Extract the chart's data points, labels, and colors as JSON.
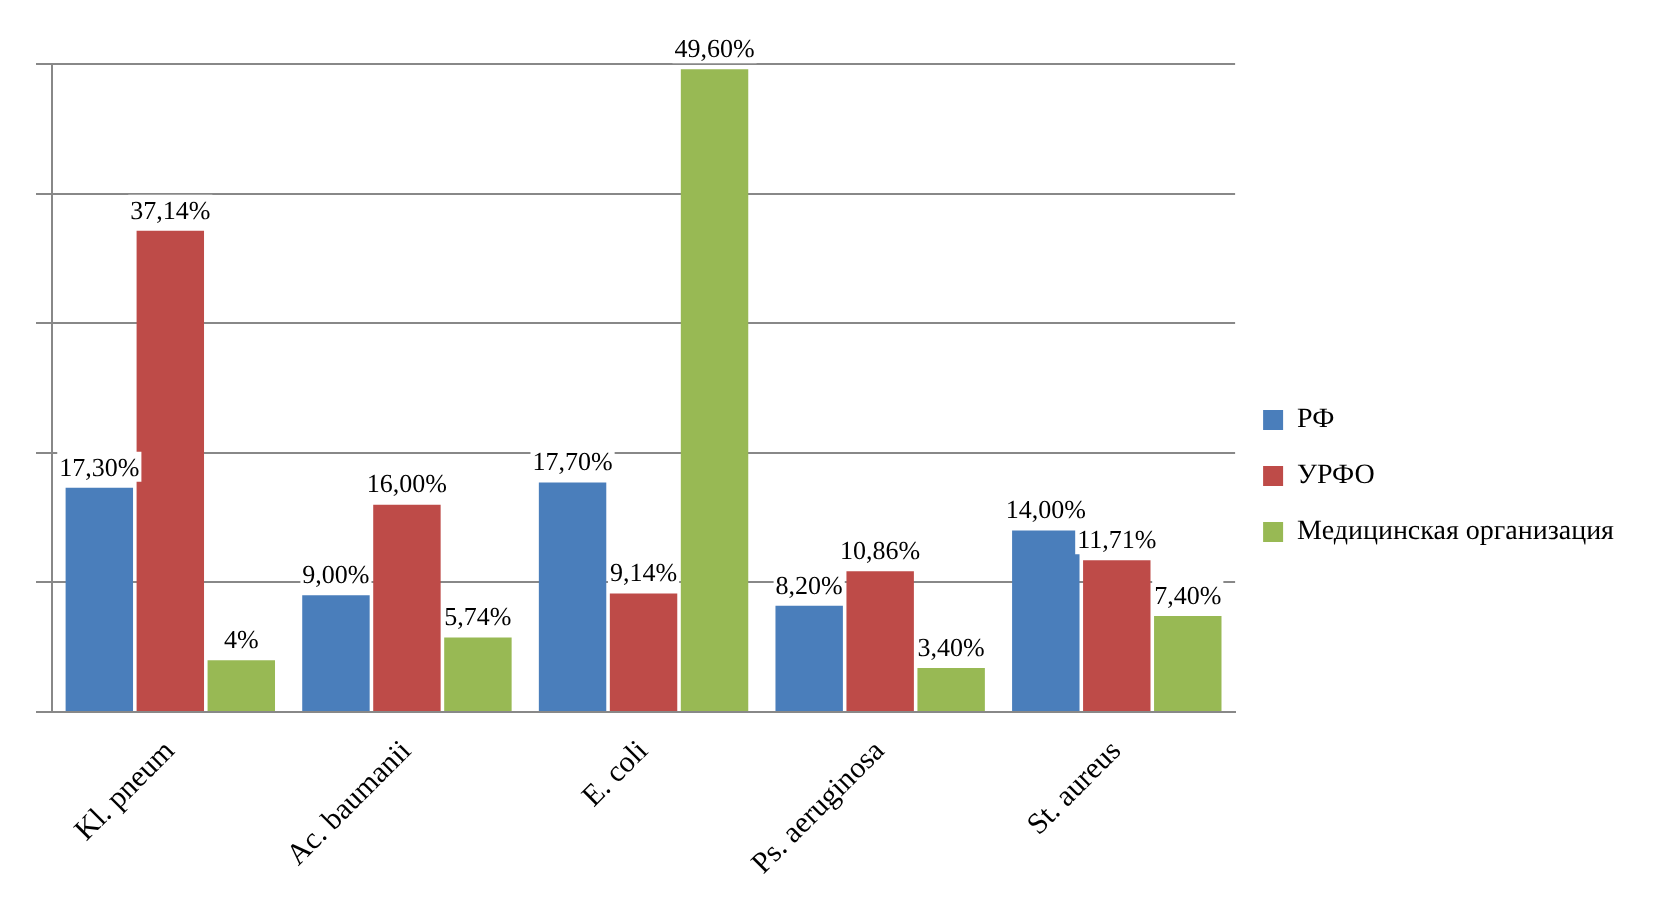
{
  "chart_data": {
    "type": "bar",
    "categories": [
      "Kl. pneum",
      "Ac. baumanii",
      "E. coli",
      "Ps. aeruginosa",
      "St. aureus"
    ],
    "series": [
      {
        "name": "РФ",
        "color": "#4a7ebb",
        "values": [
          17.3,
          9.0,
          17.7,
          8.2,
          14.0
        ],
        "value_labels": [
          "17,30%",
          "9,00%",
          "17,70%",
          "8,20%",
          "14,00%"
        ]
      },
      {
        "name": "УРФО",
        "color": "#be4b48",
        "values": [
          37.14,
          16.0,
          9.14,
          10.86,
          11.71
        ],
        "value_labels": [
          "37,14%",
          "16,00%",
          "9,14%",
          "10,86%",
          "11,71%"
        ]
      },
      {
        "name": "Медицинская организация",
        "color": "#98b954",
        "values": [
          4,
          5.74,
          49.6,
          3.4,
          7.4
        ],
        "value_labels": [
          "4%",
          "5,74%",
          "49,60%",
          "3,40%",
          "7,40%"
        ]
      }
    ],
    "ylim": [
      0,
      50
    ],
    "yticks": [
      {
        "value": 0,
        "label": null
      },
      {
        "value": 10,
        "label": null
      },
      {
        "value": 20,
        "label": null
      },
      {
        "value": 30,
        "label": null
      },
      {
        "value": 40,
        "label": null
      },
      {
        "value": 50,
        "label": null
      }
    ],
    "tick_labels": "x",
    "grid": "y",
    "legend": "right"
  }
}
